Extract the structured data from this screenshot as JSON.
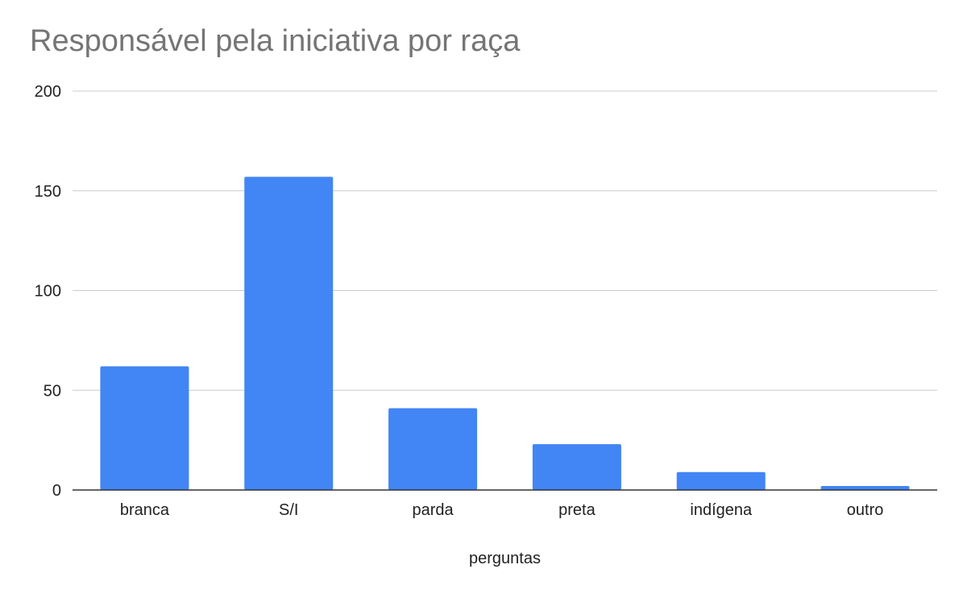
{
  "chart_data": {
    "type": "bar",
    "title": "Responsável pela iniciativa por raça",
    "xlabel": "perguntas",
    "ylabel": "",
    "categories": [
      "branca",
      "S/I",
      "parda",
      "preta",
      "indígena",
      "outro"
    ],
    "series": [
      {
        "values": [
          62,
          157,
          41,
          23,
          9,
          2
        ]
      }
    ],
    "ylim": [
      0,
      200
    ],
    "yticks": [
      "0",
      "50",
      "100",
      "150",
      "200"
    ],
    "grid": true,
    "legend": "none",
    "colors": {
      "bar": "#4285f4",
      "gridline": "#cccccc",
      "axis": "#333333",
      "title": "#757575",
      "text": "#222222"
    }
  }
}
